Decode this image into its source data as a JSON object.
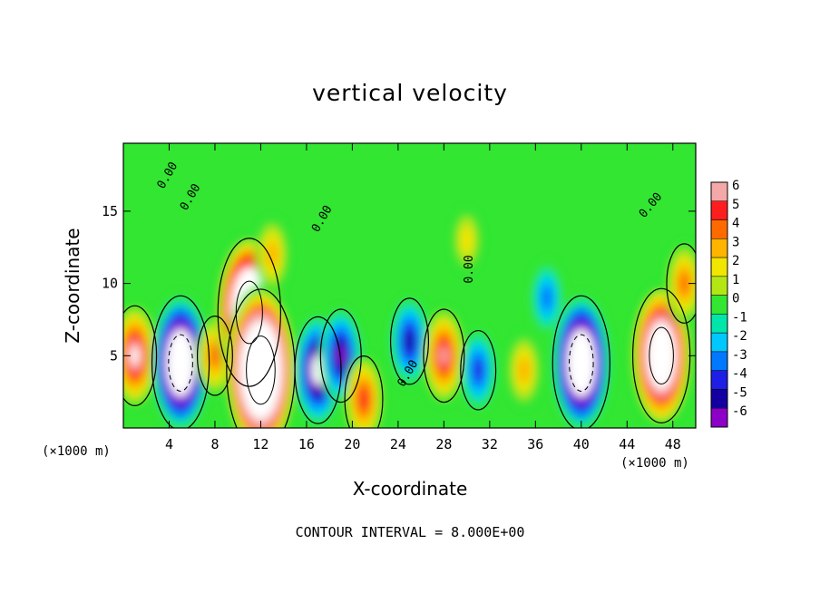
{
  "chart_data": {
    "type": "heatmap",
    "title": "vertical velocity",
    "xlabel": "X-coordinate",
    "ylabel": "Z-coordinate",
    "x_unit_label": "(×1000 m)",
    "y_unit_label": "(×1000 m)",
    "x_ticks": [
      4,
      8,
      12,
      16,
      20,
      24,
      28,
      32,
      36,
      40,
      44,
      48
    ],
    "y_ticks": [
      5,
      10,
      15
    ],
    "xlim": [
      0,
      50
    ],
    "ylim": [
      0,
      19.7
    ],
    "colorbar_ticks": [
      6,
      5,
      4,
      3,
      2,
      1,
      0,
      -1,
      -2,
      -3,
      -4,
      -5,
      -6
    ],
    "colorbar_colors": [
      "#f5a8a8",
      "#ff1e1e",
      "#ff6a00",
      "#ffb400",
      "#f0e600",
      "#b4e614",
      "#32e632",
      "#00e6aa",
      "#00c8ff",
      "#0078ff",
      "#1e1ee6",
      "#1400a0",
      "#8c00c8"
    ],
    "contour_labels": [
      "0.00",
      "0.00",
      "0.00",
      "0.00",
      "0.00",
      "0.00"
    ],
    "contour_interval_text": "CONTOUR INTERVAL = 8.000E+00",
    "cells": [
      {
        "x": 1,
        "z": 5,
        "w": 7
      },
      {
        "x": 5,
        "z": 4.5,
        "w": -12
      },
      {
        "x": 8,
        "z": 5,
        "w": 4
      },
      {
        "x": 11,
        "z": 8,
        "w": 14
      },
      {
        "x": 12,
        "z": 4,
        "w": 16
      },
      {
        "x": 13,
        "z": 12,
        "w": 3
      },
      {
        "x": 17,
        "z": 4,
        "w": -8
      },
      {
        "x": 19,
        "z": 5,
        "w": -6
      },
      {
        "x": 21,
        "z": 2,
        "w": 5
      },
      {
        "x": 25,
        "z": 6,
        "w": -5
      },
      {
        "x": 28,
        "z": 5,
        "w": 6
      },
      {
        "x": 31,
        "z": 4,
        "w": -4
      },
      {
        "x": 35,
        "z": 4,
        "w": 3
      },
      {
        "x": 40,
        "z": 4.5,
        "w": -12
      },
      {
        "x": 37,
        "z": 9,
        "w": -3
      },
      {
        "x": 47,
        "z": 5,
        "w": 12
      },
      {
        "x": 49,
        "z": 10,
        "w": 4
      },
      {
        "x": 30,
        "z": 13,
        "w": 1.5
      }
    ]
  }
}
